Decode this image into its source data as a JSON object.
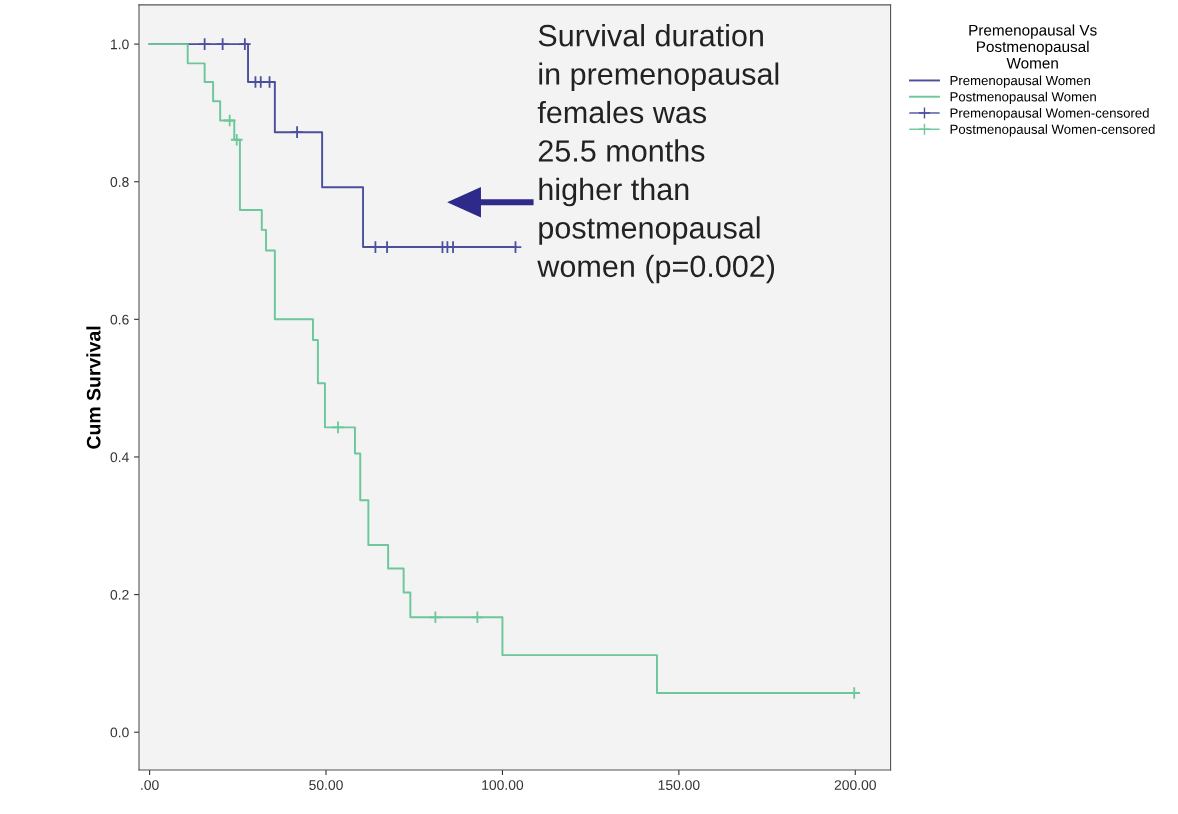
{
  "chart_data": {
    "type": "step",
    "ylabel": "Cum Survival",
    "legend_title": "Premenopausal Vs\nPostmenopausal\nWomen",
    "legend": "right",
    "grid": false,
    "xlim": [
      -3,
      210
    ],
    "xticks": [
      {
        "value": 0,
        "label": ".00"
      },
      {
        "value": 50,
        "label": "50.00"
      },
      {
        "value": 100,
        "label": "100.00"
      },
      {
        "value": 150,
        "label": "150.00"
      },
      {
        "value": 200,
        "label": "200.00"
      }
    ],
    "ylim": [
      -0.055,
      1.057
    ],
    "yticks": [
      {
        "value": 0,
        "label": "0.0"
      },
      {
        "value": 0.2,
        "label": "0.2"
      },
      {
        "value": 0.4,
        "label": "0.4"
      },
      {
        "value": 0.6,
        "label": "0.6"
      },
      {
        "value": 0.8,
        "label": "0.8"
      },
      {
        "value": 1,
        "label": "1.0"
      }
    ],
    "annotations": [
      "Survival duration\nin premenopausal\nfemales was\n25.5 months\nhigher than\npostmenopausal\nwomen (p=0.002)"
    ],
    "series": [
      {
        "name": "Premenopausal Women",
        "color": "#4b4f9e",
        "marker": "none",
        "x": [
          0,
          27.9,
          35.5,
          48.9,
          60.5,
          103.7
        ],
        "values": [
          1,
          0.945,
          0.872,
          0.792,
          0.705,
          0.705
        ]
      },
      {
        "name": "Postmenopausal Women",
        "color": "#6cc79a",
        "marker": "none",
        "x": [
          0,
          10.8,
          15.6,
          18,
          20,
          24,
          25.6,
          31.8,
          33,
          35.5,
          46.3,
          47.7,
          49.7,
          58.2,
          59.7,
          62,
          67.6,
          72,
          73.9,
          100,
          143.8,
          199.7
        ],
        "values": [
          1,
          0.972,
          0.945,
          0.917,
          0.889,
          0.861,
          0.759,
          0.73,
          0.7,
          0.6,
          0.57,
          0.507,
          0.443,
          0.405,
          0.337,
          0.272,
          0.238,
          0.203,
          0.167,
          0.112,
          0.057,
          0.057
        ]
      },
      {
        "name": "Premenopausal Women-censored",
        "type": "scatter",
        "color": "#4b4f9e",
        "marker": "cross",
        "x": [
          15.6,
          20.7,
          27,
          30,
          31.5,
          34,
          41.8,
          64,
          67.3,
          83,
          84.4,
          86,
          103.7
        ],
        "values": [
          1,
          1,
          1,
          0.945,
          0.945,
          0.945,
          0.872,
          0.705,
          0.705,
          0.705,
          0.705,
          0.705,
          0.705
        ]
      },
      {
        "name": "Postmenopausal Women-censored",
        "type": "scatter",
        "color": "#6cc79a",
        "marker": "cross",
        "x": [
          22.7,
          24.7,
          53.4,
          81,
          92.9,
          199.7
        ],
        "values": [
          0.889,
          0.861,
          0.443,
          0.167,
          0.167,
          0.057
        ]
      }
    ]
  }
}
